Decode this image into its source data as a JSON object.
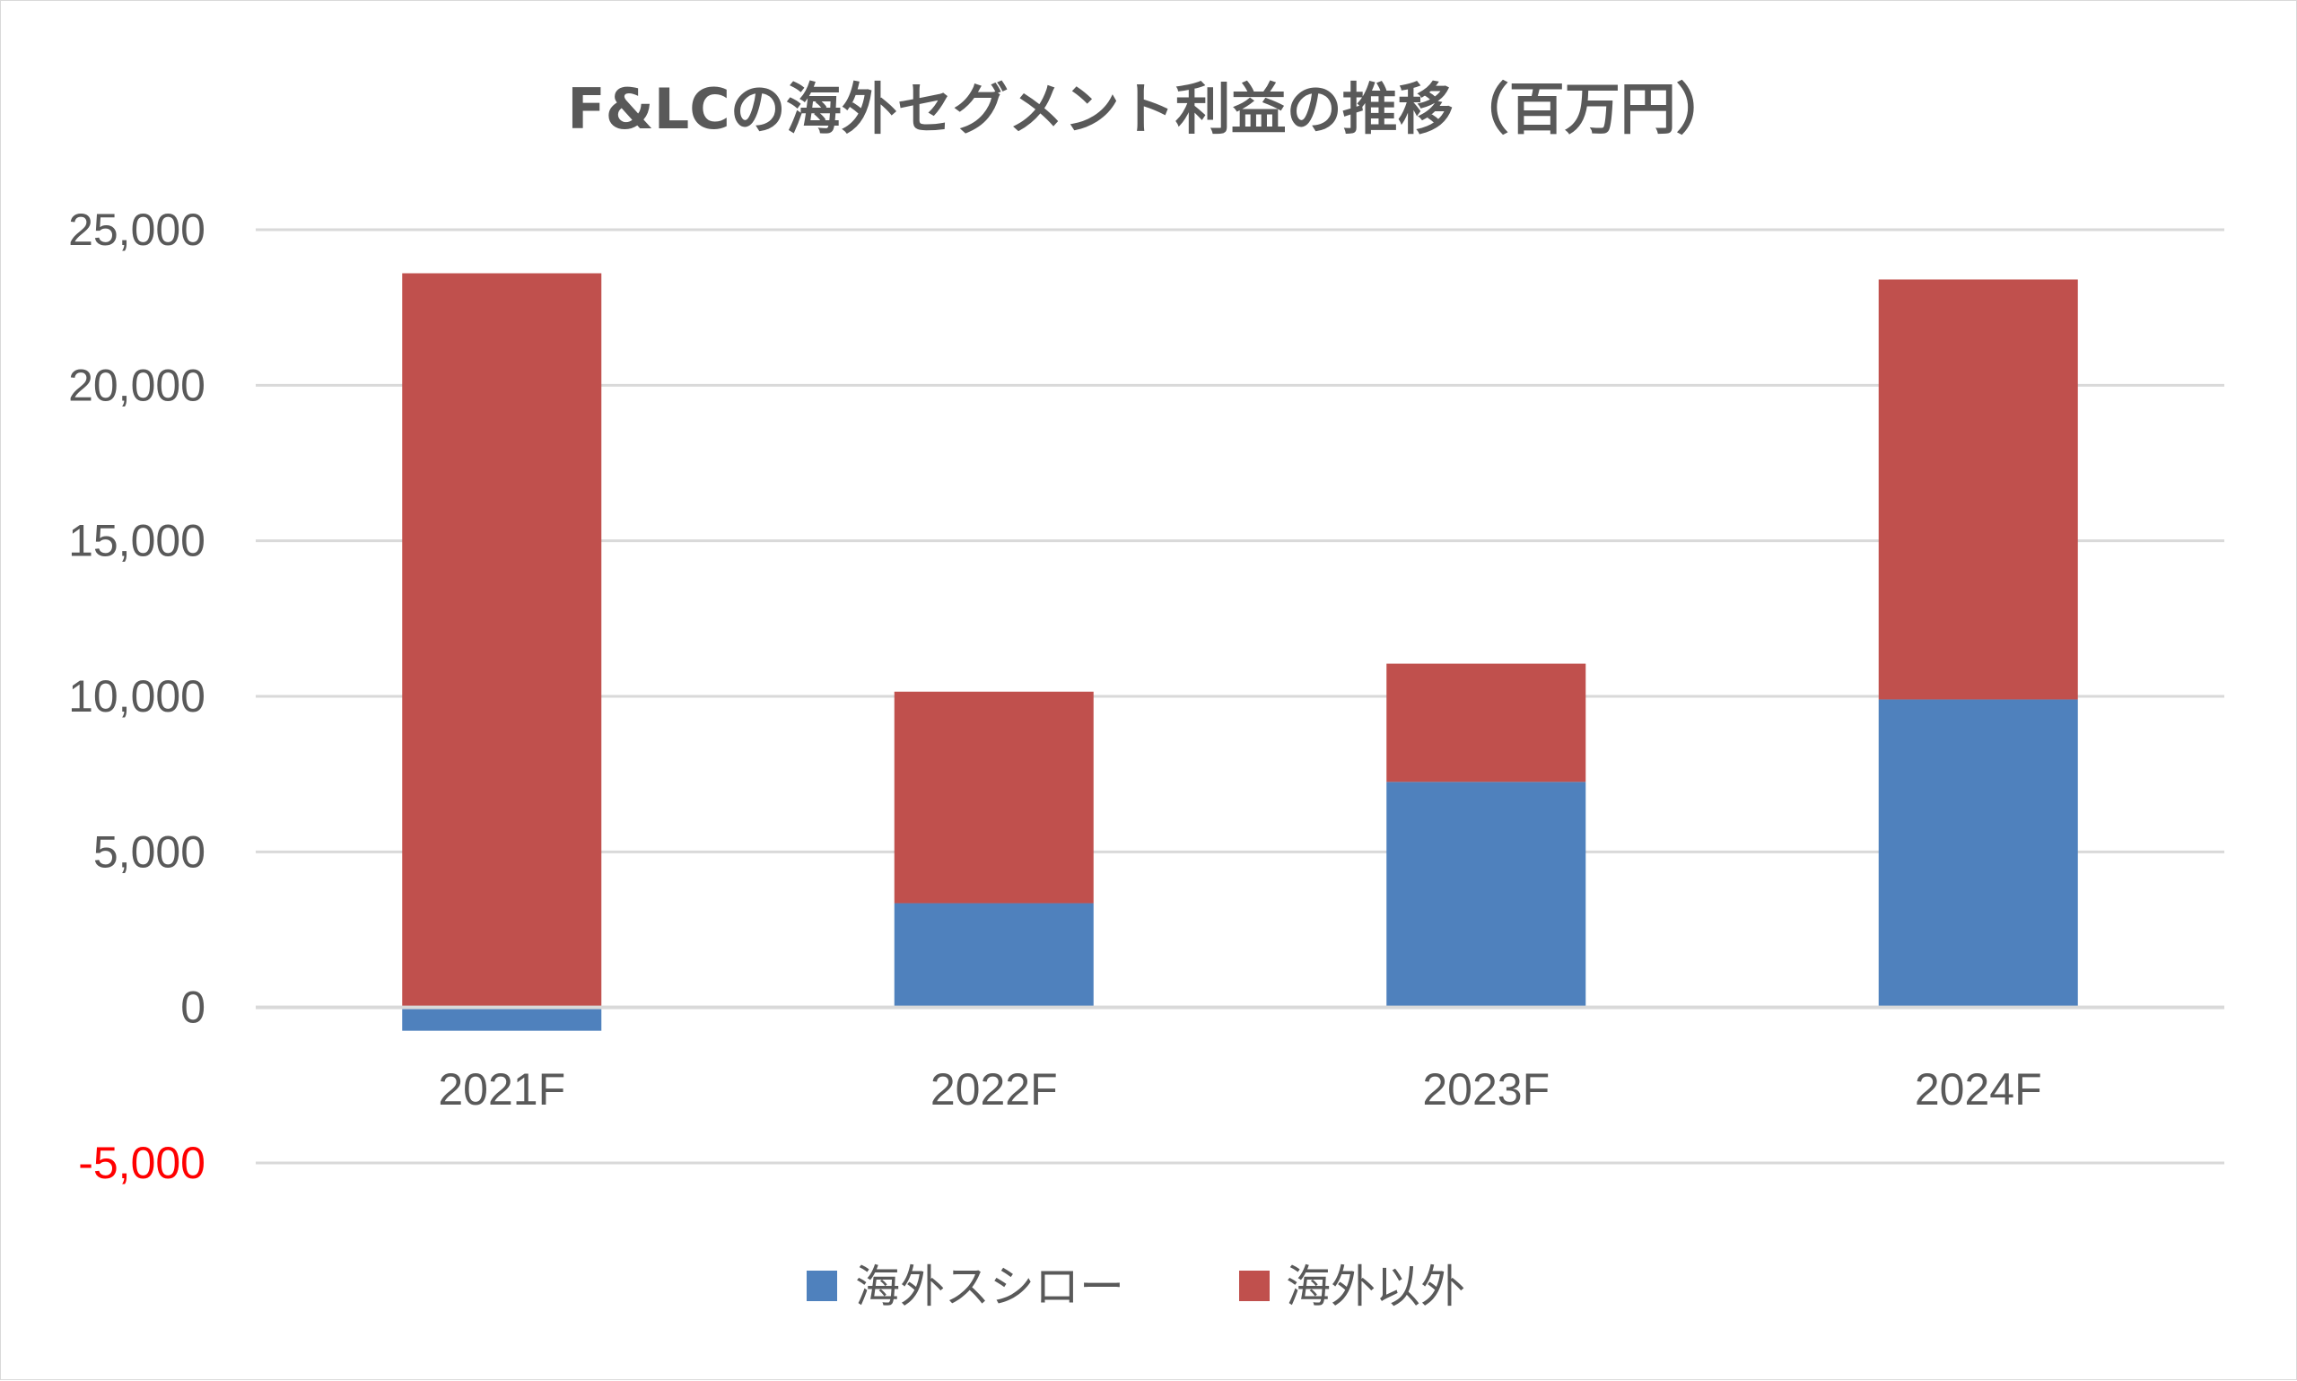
{
  "chart_data": {
    "type": "bar",
    "stacked": true,
    "title": "F&LCの海外セグメント利益の推移（百万円）",
    "categories": [
      "2021F",
      "2022F",
      "2023F",
      "2024F"
    ],
    "series": [
      {
        "name": "海外スシロー",
        "color": "#4f81bd",
        "values": [
          -750,
          3350,
          7250,
          9900
        ]
      },
      {
        "name": "海外以外",
        "color": "#c0504d",
        "values": [
          23600,
          6800,
          3800,
          13500
        ]
      }
    ],
    "ylim": [
      -5000,
      25000
    ],
    "yticks": [
      25000,
      20000,
      15000,
      10000,
      5000,
      0,
      -5000
    ],
    "ytick_labels": [
      "25,000",
      "20,000",
      "15,000",
      "10,000",
      "5,000",
      "0",
      "-5,000"
    ],
    "ytick_colors": [
      "#595959",
      "#595959",
      "#595959",
      "#595959",
      "#595959",
      "#595959",
      "#ff0000"
    ],
    "grid": true,
    "legend_position": "bottom"
  }
}
